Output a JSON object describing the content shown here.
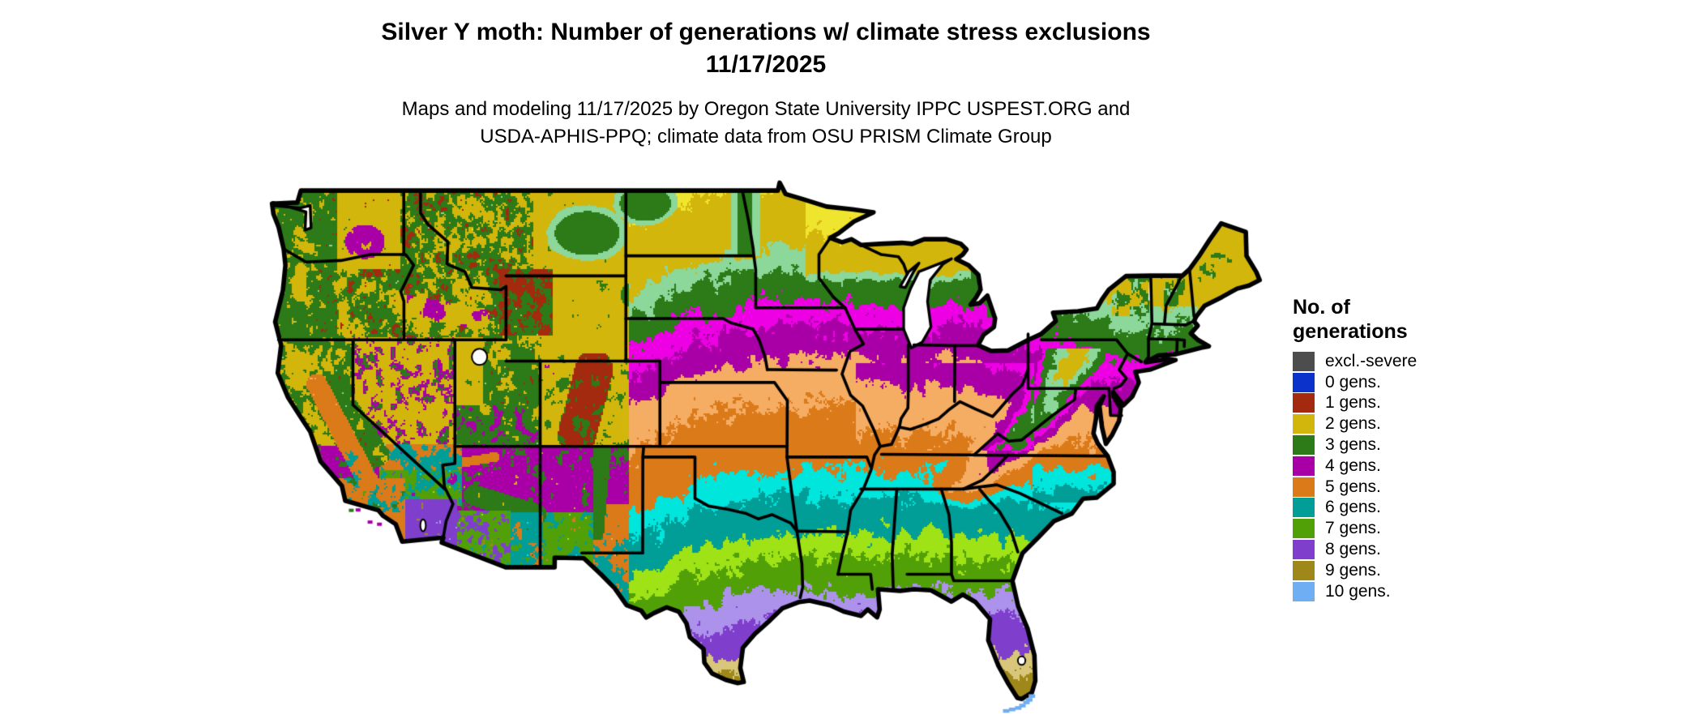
{
  "title": {
    "line1": "Silver Y moth: Number of generations w/ climate stress exclusions",
    "line2": "11/17/2025"
  },
  "subtitle": {
    "line1": "Maps and modeling 11/17/2025 by Oregon State University IPPC USPEST.ORG and",
    "line2": "USDA-APHIS-PPQ; climate data from OSU PRISM Climate Group"
  },
  "legend": {
    "title_line1": "No. of",
    "title_line2": "generations",
    "entries": [
      {
        "id": "excl",
        "label": "excl.-severe",
        "color": "#4D4D4D",
        "light": "#4D4D4D"
      },
      {
        "id": "0",
        "label": "0 gens.",
        "color": "#0B33CC",
        "light": "#3A5CE8"
      },
      {
        "id": "1",
        "label": "1 gens.",
        "color": "#A32A0E",
        "light": "#E33E10"
      },
      {
        "id": "2",
        "label": "2 gens.",
        "color": "#D3B60B",
        "light": "#EFE52F"
      },
      {
        "id": "3",
        "label": "3 gens.",
        "color": "#2C7A18",
        "light": "#8CD79A"
      },
      {
        "id": "4",
        "label": "4 gens.",
        "color": "#A800A6",
        "light": "#EE00E4"
      },
      {
        "id": "5",
        "label": "5 gens.",
        "color": "#DB7A19",
        "light": "#F5AC63"
      },
      {
        "id": "6",
        "label": "6 gens.",
        "color": "#019D97",
        "light": "#00E6DD"
      },
      {
        "id": "7",
        "label": "7 gens.",
        "color": "#52A008",
        "light": "#9FE316"
      },
      {
        "id": "8",
        "label": "8 gens.",
        "color": "#7F3FCC",
        "light": "#AC92EB"
      },
      {
        "id": "9",
        "label": "9 gens.",
        "color": "#9F881A",
        "light": "#D8C67A"
      },
      {
        "id": "10",
        "label": "10 gens.",
        "color": "#6FAEF2",
        "light": "#9CCBF7"
      }
    ]
  },
  "map": {
    "ocean_color": "#FFFFFF",
    "boundary_color": "#000000"
  }
}
